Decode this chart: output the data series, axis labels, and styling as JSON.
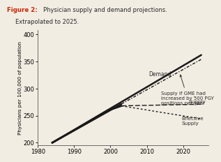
{
  "title_bold": "Figure 2:",
  "title_normal": " Physician supply and demand projections.\n Extrapolated to 2025.",
  "ylabel": "Physicians per 100,000 of population",
  "xlim": [
    1980,
    2027
  ],
  "ylim": [
    195,
    408
  ],
  "yticks": [
    200,
    250,
    300,
    350,
    400
  ],
  "xticks": [
    1980,
    1990,
    2000,
    2010,
    2020
  ],
  "background_color": "#f2ede3",
  "anno_demand": "Demand",
  "anno_supply_gme": "Supply if GME had\nincreased by 500 PGY\npositions per year",
  "anno_supply": "Supply",
  "anno_eff_supply": "Effective\nSupply",
  "label_color": "#2a2a2a",
  "title_color": "#cc2200",
  "line_color": "#1a1a1a",
  "demand_data_x": [
    1984,
    2025
  ],
  "demand_data_y": [
    200,
    362
  ],
  "supply_gme_data_x": [
    1984,
    2025
  ],
  "supply_gme_data_y": [
    200,
    354
  ],
  "supply_data_x": [
    1984,
    2000,
    2003,
    2025
  ],
  "supply_data_y": [
    200,
    261,
    268,
    271
  ],
  "eff_supply_data_x": [
    1984,
    2000,
    2003,
    2025
  ],
  "eff_supply_data_y": [
    200,
    261,
    268,
    244
  ],
  "hist_cutoff": 2003
}
